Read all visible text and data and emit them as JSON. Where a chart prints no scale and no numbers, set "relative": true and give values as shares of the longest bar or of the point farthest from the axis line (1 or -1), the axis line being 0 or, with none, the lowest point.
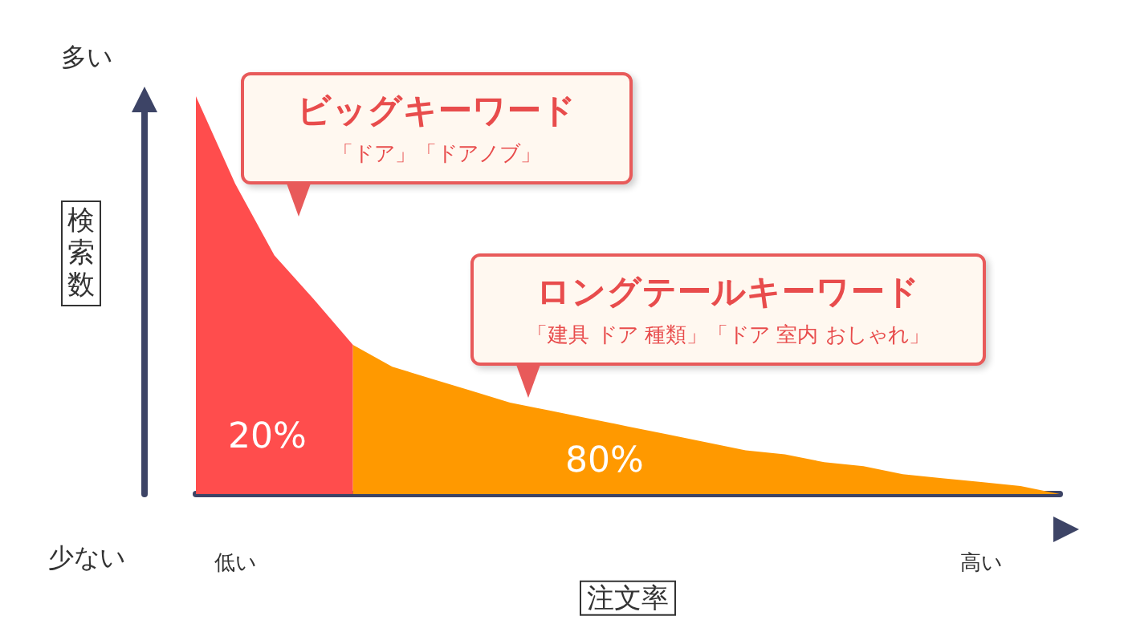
{
  "chart_data": {
    "type": "area",
    "relative": true,
    "xlabel": "注文率",
    "ylabel": "検索数",
    "categories": [
      null,
      "低い",
      null,
      null,
      null,
      null,
      null,
      null,
      null,
      null,
      null,
      null,
      null,
      null,
      null,
      null,
      null,
      null,
      null,
      null,
      "高い",
      null,
      null
    ],
    "series": [
      {
        "color": "#ff4d4d",
        "values": [
          1,
          0.78,
          0.6,
          0.49,
          0.375,
          null,
          null,
          null,
          null,
          null,
          null,
          null,
          null,
          null,
          null,
          null,
          null,
          null,
          null,
          null,
          null,
          null,
          null
        ]
      },
      {
        "color": "#ff9900",
        "values": [
          null,
          null,
          null,
          null,
          0.375,
          0.32,
          0.29,
          0.26,
          0.23,
          0.21,
          0.19,
          0.17,
          0.15,
          0.13,
          0.11,
          0.1,
          0.08,
          0.07,
          0.05,
          0.04,
          0.03,
          0.02,
          0
        ]
      }
    ],
    "annotations": [
      "ビッグキーワード",
      "「ドア」「ドアノブ」",
      "ロングテールキーワード",
      "「建具 ドア 種類」「ドア 室内 おしゃれ」",
      "20%",
      "80%",
      "多い",
      "少ない"
    ]
  }
}
